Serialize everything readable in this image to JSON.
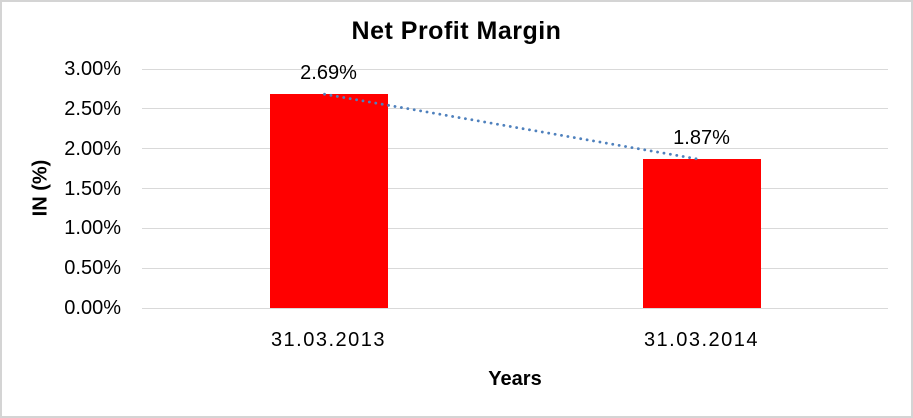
{
  "chart": {
    "title": "Net Profit Margin",
    "y_axis_title": "IN (%)",
    "x_axis_title": "Years"
  },
  "chart_data": {
    "type": "bar",
    "title": "Net Profit Margin",
    "xlabel": "Years",
    "ylabel": "IN (%)",
    "categories": [
      "31.03.2013",
      "31.03.2014"
    ],
    "values": [
      2.69,
      1.87
    ],
    "value_labels": [
      "2.69%",
      "1.87%"
    ],
    "ylim": [
      0,
      3
    ],
    "ytick_step": 0.5,
    "ytick_labels": [
      "0.00%",
      "0.50%",
      "1.00%",
      "1.50%",
      "2.00%",
      "2.50%",
      "3.00%"
    ],
    "grid": true,
    "legend": false,
    "bar_color": "#ff0000",
    "gridline_color": "#d9d9d9",
    "text_color": "#000000",
    "border_color": "#d4d4d4",
    "trendline": {
      "style": "dotted",
      "color": "#4f81bd",
      "connects": [
        "31.03.2013",
        "31.03.2014"
      ]
    }
  }
}
